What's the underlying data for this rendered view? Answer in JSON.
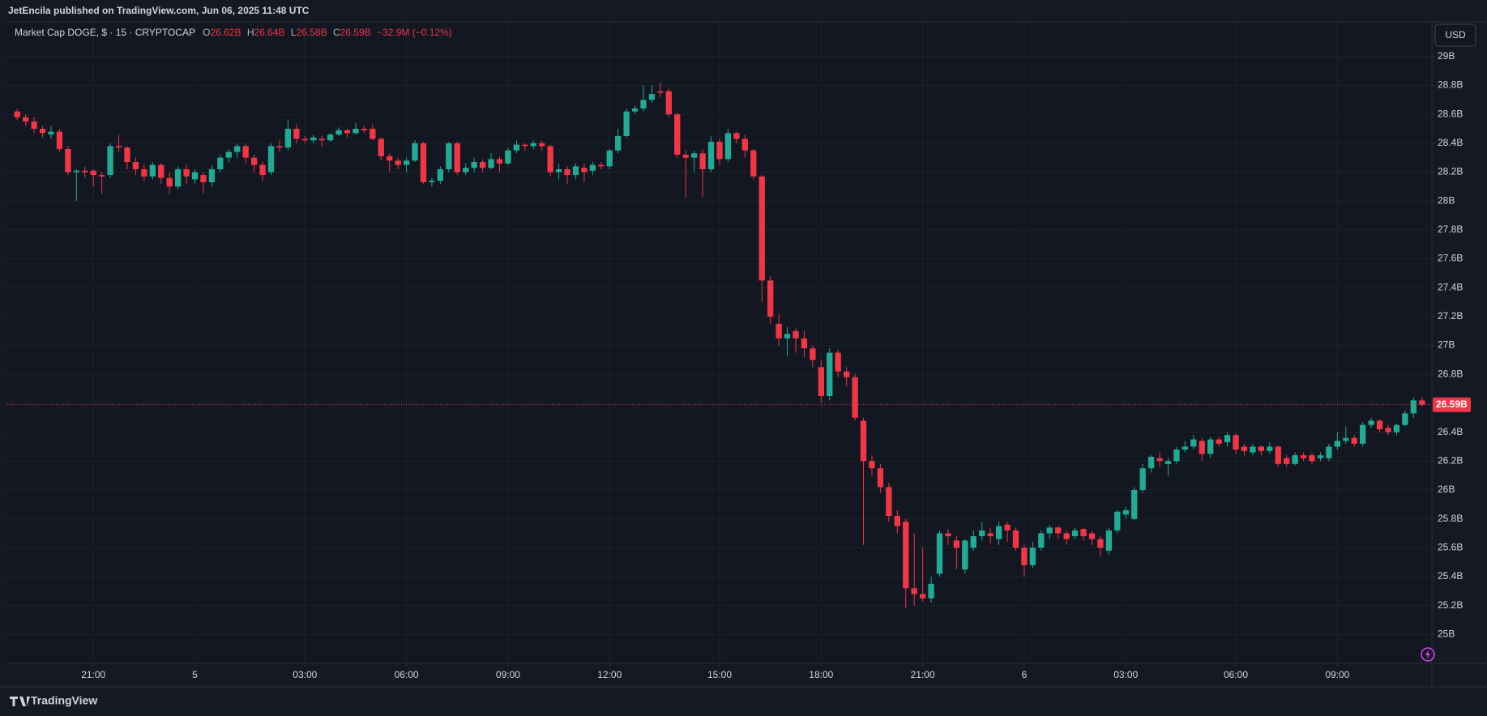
{
  "header": {
    "published": "JetEncila published on TradingView.com, Jun 06, 2025 11:48 UTC",
    "symbol": "Market Cap DOGE, $ · 15 · CRYPTOCAP",
    "ohlc": [
      {
        "key": "O",
        "value": "26.62B"
      },
      {
        "key": "H",
        "value": "26.64B"
      },
      {
        "key": "L",
        "value": "26.58B"
      },
      {
        "key": "C",
        "value": "26.59B"
      }
    ],
    "change": "−32.9M (−0.12%)",
    "currency": "USD"
  },
  "footer": {
    "brand": "TradingView"
  },
  "chart_data": {
    "type": "candlestick",
    "grid": true,
    "up_color": "#22ab94",
    "down_color": "#f23645",
    "ylim": [
      24.8,
      29.24
    ],
    "yticks": [
      {
        "value": 25,
        "label": "25B"
      },
      {
        "value": 25.2,
        "label": "25.2B"
      },
      {
        "value": 25.4,
        "label": "25.4B"
      },
      {
        "value": 25.6,
        "label": "25.6B"
      },
      {
        "value": 25.8,
        "label": "25.8B"
      },
      {
        "value": 26,
        "label": "26B"
      },
      {
        "value": 26.2,
        "label": "26.2B"
      },
      {
        "value": 26.4,
        "label": "26.4B"
      },
      {
        "value": 26.6,
        "label": "26.6B"
      },
      {
        "value": 26.8,
        "label": "26.8B"
      },
      {
        "value": 27,
        "label": "27B"
      },
      {
        "value": 27.2,
        "label": "27.2B"
      },
      {
        "value": 27.4,
        "label": "27.4B"
      },
      {
        "value": 27.6,
        "label": "27.6B"
      },
      {
        "value": 27.8,
        "label": "27.8B"
      },
      {
        "value": 28,
        "label": "28B"
      },
      {
        "value": 28.2,
        "label": "28.2B"
      },
      {
        "value": 28.4,
        "label": "28.4B"
      },
      {
        "value": 28.6,
        "label": "28.6B"
      },
      {
        "value": 28.8,
        "label": "28.8B"
      },
      {
        "value": 29,
        "label": "29B"
      }
    ],
    "xticks": [
      {
        "value": 9,
        "label": "21:00"
      },
      {
        "value": 21,
        "label": "5"
      },
      {
        "value": 34,
        "label": "03:00"
      },
      {
        "value": 46,
        "label": "06:00"
      },
      {
        "value": 58,
        "label": "09:00"
      },
      {
        "value": 70,
        "label": "12:00"
      },
      {
        "value": 83,
        "label": "15:00"
      },
      {
        "value": 95,
        "label": "18:00"
      },
      {
        "value": 107,
        "label": "21:00"
      },
      {
        "value": 119,
        "label": "6"
      },
      {
        "value": 131,
        "label": "03:00"
      },
      {
        "value": 144,
        "label": "06:00"
      },
      {
        "value": 156,
        "label": "09:00"
      }
    ],
    "last_price": {
      "value": 26.59,
      "label": "26.59B"
    },
    "open": [
      28.62,
      28.58,
      28.55,
      28.5,
      28.46,
      28.48,
      28.36,
      28.2,
      28.21,
      28.21,
      28.18,
      28.18,
      28.38,
      28.37,
      28.27,
      28.22,
      28.17,
      28.25,
      28.16,
      28.1,
      28.22,
      28.15,
      28.18,
      28.13,
      28.22,
      28.3,
      28.34,
      28.38,
      28.3,
      28.25,
      28.2,
      28.38,
      28.37,
      28.5,
      28.43,
      28.42,
      28.43,
      28.42,
      28.46,
      28.49,
      28.47,
      28.5,
      28.5,
      28.43,
      28.31,
      28.28,
      28.25,
      28.28,
      28.4,
      28.13,
      28.14,
      28.22,
      28.4,
      28.2,
      28.23,
      28.27,
      28.23,
      28.29,
      28.26,
      28.35,
      28.39,
      28.38,
      28.4,
      28.38,
      28.2,
      28.22,
      28.18,
      28.23,
      28.21,
      28.25,
      28.24,
      28.35,
      28.45,
      28.62,
      28.64,
      28.7,
      28.76,
      28.76,
      28.6,
      28.32,
      28.3,
      28.33,
      28.22,
      28.41,
      28.29,
      28.47,
      28.43,
      28.35,
      28.17,
      27.45,
      27.15,
      27.05,
      27.1,
      27.05,
      26.98,
      26.85,
      26.65,
      26.95,
      26.82,
      26.78,
      26.48,
      26.2,
      26.15,
      26.02,
      25.82,
      25.78,
      25.32,
      25.28,
      25.25,
      25.42,
      25.7,
      25.65,
      25.45,
      25.6,
      25.68,
      25.7,
      25.66,
      25.76,
      25.72,
      25.6,
      25.48,
      25.6,
      25.7,
      25.74,
      25.7,
      25.68,
      25.73,
      25.7,
      25.66,
      25.58,
      25.72,
      25.83,
      25.8,
      26.0,
      26.15,
      26.22,
      26.18,
      26.2,
      26.28,
      26.3,
      26.34,
      26.25,
      26.35,
      26.33,
      26.38,
      26.3,
      26.26,
      26.3,
      26.27,
      26.3,
      26.22,
      26.18,
      26.24,
      26.24,
      26.22,
      26.22,
      26.3,
      26.34,
      26.36,
      26.32,
      26.45,
      26.48,
      26.43,
      26.4,
      26.45,
      26.53,
      26.62
    ],
    "high": [
      28.64,
      28.6,
      28.58,
      28.52,
      28.52,
      28.5,
      28.38,
      28.22,
      28.24,
      28.22,
      28.2,
      28.4,
      28.46,
      28.38,
      28.3,
      28.25,
      28.27,
      28.26,
      28.2,
      28.24,
      28.25,
      28.22,
      28.2,
      28.25,
      28.32,
      28.36,
      28.4,
      28.4,
      28.32,
      28.27,
      28.4,
      28.42,
      28.56,
      28.53,
      28.45,
      28.46,
      28.45,
      28.47,
      28.51,
      28.5,
      28.54,
      28.52,
      28.53,
      28.44,
      28.33,
      28.3,
      28.3,
      28.42,
      28.41,
      28.16,
      28.24,
      28.41,
      28.41,
      28.26,
      28.3,
      28.29,
      28.33,
      28.31,
      28.37,
      28.42,
      28.4,
      28.42,
      28.42,
      28.39,
      28.26,
      28.24,
      28.26,
      28.26,
      28.27,
      28.27,
      28.36,
      28.5,
      28.64,
      28.66,
      28.8,
      28.8,
      28.82,
      28.78,
      28.61,
      28.35,
      28.35,
      28.36,
      28.45,
      28.43,
      28.5,
      28.48,
      28.46,
      28.36,
      28.18,
      27.48,
      27.22,
      27.13,
      27.12,
      27.1,
      27.0,
      26.9,
      26.98,
      26.97,
      26.85,
      26.8,
      26.5,
      26.24,
      26.18,
      26.05,
      25.86,
      25.8,
      25.7,
      25.6,
      25.4,
      25.72,
      25.73,
      25.68,
      25.66,
      25.72,
      25.78,
      25.74,
      25.78,
      25.78,
      25.74,
      25.62,
      25.64,
      25.72,
      25.76,
      25.75,
      25.72,
      25.74,
      25.74,
      25.72,
      25.68,
      25.74,
      25.86,
      25.88,
      26.02,
      26.18,
      26.24,
      26.26,
      26.22,
      26.3,
      26.34,
      26.38,
      26.36,
      26.37,
      26.37,
      26.4,
      26.39,
      26.32,
      26.32,
      26.31,
      26.33,
      26.31,
      26.24,
      26.26,
      26.26,
      26.26,
      26.26,
      26.32,
      26.4,
      26.44,
      26.38,
      26.47,
      26.5,
      26.49,
      26.45,
      26.46,
      26.55,
      26.64,
      26.64
    ],
    "low": [
      28.56,
      28.52,
      28.47,
      28.44,
      28.43,
      28.34,
      28.18,
      28.0,
      28.16,
      28.1,
      28.05,
      28.16,
      28.34,
      28.22,
      28.18,
      28.14,
      28.15,
      28.12,
      28.05,
      28.08,
      28.12,
      28.12,
      28.05,
      28.1,
      28.2,
      28.27,
      28.3,
      28.26,
      28.2,
      28.14,
      28.18,
      28.34,
      28.35,
      28.4,
      28.4,
      28.4,
      28.38,
      28.41,
      28.45,
      28.44,
      28.46,
      28.47,
      28.42,
      28.28,
      28.2,
      28.22,
      28.2,
      28.27,
      28.12,
      28.1,
      28.12,
      28.2,
      28.18,
      28.18,
      28.2,
      28.2,
      28.22,
      28.2,
      28.25,
      28.33,
      28.35,
      28.36,
      28.35,
      28.17,
      28.15,
      28.12,
      28.15,
      28.13,
      28.18,
      28.22,
      28.22,
      28.33,
      28.44,
      28.6,
      28.62,
      28.68,
      28.72,
      28.58,
      28.3,
      28.02,
      28.2,
      28.03,
      28.2,
      28.25,
      28.27,
      28.4,
      28.3,
      28.15,
      27.3,
      27.15,
      27.0,
      26.93,
      26.95,
      26.92,
      26.85,
      26.6,
      26.62,
      26.78,
      26.72,
      26.48,
      25.62,
      26.1,
      25.98,
      25.78,
      25.7,
      25.18,
      25.2,
      25.23,
      25.22,
      25.4,
      25.62,
      25.45,
      25.42,
      25.58,
      25.65,
      25.63,
      25.62,
      25.64,
      25.58,
      25.4,
      25.46,
      25.58,
      25.66,
      25.66,
      25.62,
      25.66,
      25.65,
      25.62,
      25.54,
      25.55,
      25.7,
      25.8,
      25.79,
      25.98,
      26.12,
      26.16,
      26.1,
      26.18,
      26.26,
      26.28,
      26.2,
      26.22,
      26.3,
      26.3,
      26.25,
      26.24,
      26.24,
      26.24,
      26.25,
      26.16,
      26.16,
      26.17,
      26.2,
      26.18,
      26.2,
      26.2,
      26.28,
      26.32,
      26.3,
      26.3,
      26.43,
      26.4,
      26.38,
      26.38,
      26.44,
      26.5,
      26.58
    ],
    "close": [
      28.58,
      28.55,
      28.5,
      28.47,
      28.48,
      28.36,
      28.2,
      28.21,
      28.2,
      28.18,
      28.17,
      28.38,
      28.37,
      28.27,
      28.22,
      28.17,
      28.25,
      28.16,
      28.1,
      28.22,
      28.17,
      28.2,
      28.13,
      28.22,
      28.3,
      28.34,
      28.38,
      28.3,
      28.25,
      28.18,
      28.38,
      28.37,
      28.5,
      28.43,
      28.42,
      28.44,
      28.42,
      28.46,
      28.49,
      28.47,
      28.5,
      28.49,
      28.43,
      28.31,
      28.28,
      28.25,
      28.28,
      28.4,
      28.13,
      28.14,
      28.22,
      28.4,
      28.2,
      28.23,
      28.27,
      28.23,
      28.29,
      28.26,
      28.35,
      28.39,
      28.38,
      28.4,
      28.38,
      28.2,
      28.22,
      28.18,
      28.24,
      28.2,
      28.25,
      28.24,
      28.35,
      28.45,
      28.62,
      28.64,
      28.7,
      28.74,
      28.75,
      28.6,
      28.32,
      28.3,
      28.33,
      28.22,
      28.41,
      28.29,
      28.47,
      28.43,
      28.35,
      28.17,
      27.45,
      27.2,
      27.05,
      27.08,
      27.05,
      26.98,
      26.9,
      26.65,
      26.95,
      26.82,
      26.78,
      26.5,
      26.2,
      26.15,
      26.02,
      25.82,
      25.75,
      25.32,
      25.28,
      25.25,
      25.35,
      25.7,
      25.68,
      25.6,
      25.65,
      25.68,
      25.72,
      25.68,
      25.75,
      25.72,
      25.6,
      25.48,
      25.6,
      25.7,
      25.74,
      25.7,
      25.66,
      25.72,
      25.68,
      25.66,
      25.6,
      25.72,
      25.85,
      25.86,
      26.0,
      26.15,
      26.23,
      26.2,
      26.2,
      26.28,
      26.3,
      26.35,
      26.25,
      26.35,
      26.32,
      26.38,
      26.28,
      26.27,
      26.3,
      26.27,
      26.3,
      26.18,
      26.18,
      26.24,
      26.22,
      26.2,
      26.24,
      26.3,
      26.34,
      26.36,
      26.32,
      26.45,
      26.48,
      26.42,
      26.4,
      26.45,
      26.53,
      26.62,
      26.59
    ]
  }
}
